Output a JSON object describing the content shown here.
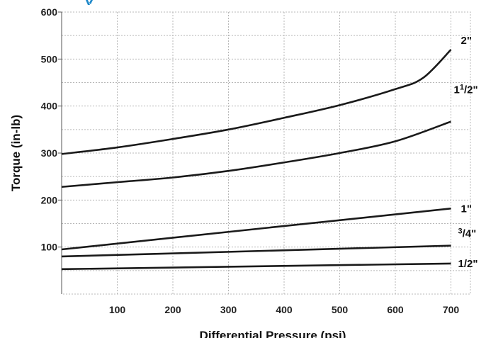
{
  "chart_data": {
    "type": "line",
    "xlabel": "Differential Pressure (psi)",
    "ylabel": "Torque (in-lb)",
    "xlim": [
      0,
      735
    ],
    "ylim": [
      0,
      600
    ],
    "x_ticks": [
      100,
      200,
      300,
      400,
      500,
      600,
      700
    ],
    "y_ticks": [
      100,
      200,
      300,
      400,
      500,
      600
    ],
    "grid": true,
    "accent_color": "#1e88c9",
    "series": [
      {
        "name": "2\"",
        "label_parts": [
          "2\""
        ],
        "x": [
          0,
          100,
          200,
          300,
          400,
          500,
          600,
          650,
          700
        ],
        "y": [
          298,
          312,
          330,
          350,
          375,
          402,
          436,
          460,
          520
        ]
      },
      {
        "name": "1 1/2\"",
        "label_parts": [
          "1",
          "1",
          "/2\""
        ],
        "x": [
          0,
          100,
          200,
          300,
          400,
          500,
          600,
          700
        ],
        "y": [
          228,
          238,
          248,
          262,
          280,
          300,
          325,
          367
        ]
      },
      {
        "name": "1\"",
        "label_parts": [
          "1\""
        ],
        "x": [
          0,
          700
        ],
        "y": [
          95,
          182
        ]
      },
      {
        "name": "3/4\"",
        "label_parts": [
          "",
          "3",
          "/4\""
        ],
        "x": [
          0,
          700
        ],
        "y": [
          80,
          103
        ]
      },
      {
        "name": "1/2\"",
        "label_parts": [
          "1/2\""
        ],
        "x": [
          0,
          700
        ],
        "y": [
          53,
          65
        ]
      }
    ]
  }
}
